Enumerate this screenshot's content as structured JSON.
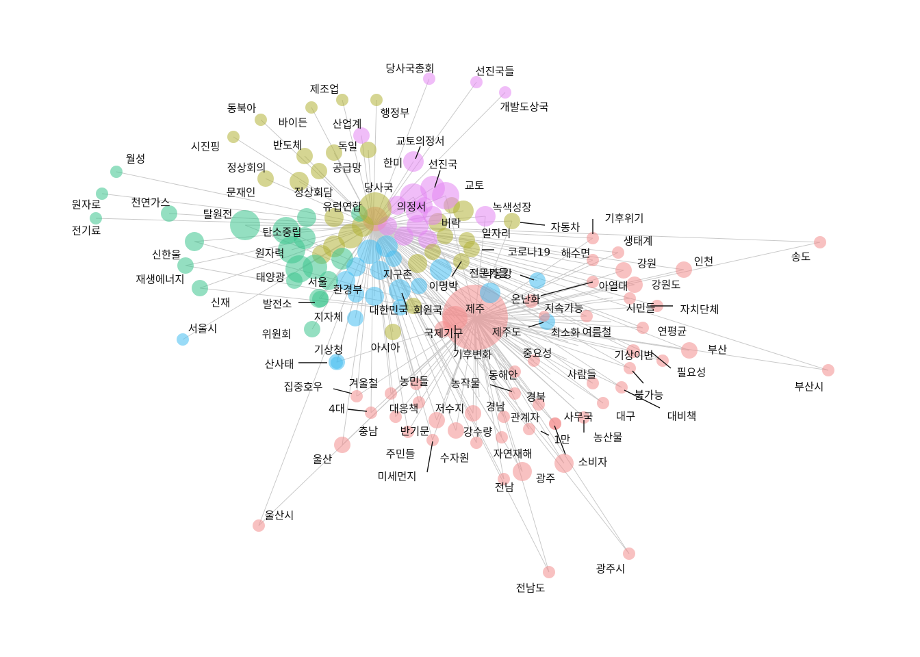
{
  "palette": {
    "salmon": "#f28e8e",
    "violet": "#e486f2",
    "olive": "#b2b239",
    "teal": "#3cc58e",
    "sky": "#45bdf0"
  },
  "graph": {
    "type": "keyword co-occurrence network",
    "clusters": [
      "salmon",
      "violet",
      "olive",
      "teal",
      "sky"
    ],
    "labels": {
      "n_jeju": "제주",
      "n_gihubyeonhwa": "기후변화",
      "n_gukjegigu": "국제기구",
      "n_onnanhwa": "온난화",
      "n_jejudo": "제주도",
      "n_choesohwa": "최소화",
      "n_jisokganeung": "지속가능",
      "n_simindeul": "시민들",
      "n_jachidanche": "자치단체",
      "n_yeonpyeonggyun": "연평균",
      "n_yeoreumcheol": "여름철",
      "n_busan": "부산",
      "n_busansi": "부산시",
      "n_pilyoseong": "필요성",
      "n_gisangibyeon": "기상이변",
      "n_bulganeung": "불가능",
      "n_daebichaek": "대비책",
      "n_daegu": "대구",
      "n_nongsanmul": "농산물",
      "n_samuguk": "사무국",
      "n_saramdeul": "사람들",
      "n_jungyoseong": "중요성",
      "n_donghaean": "동해안",
      "n_gyeongbuk": "경북",
      "n_gyeongnam": "경남",
      "n_nongjakmul": "농작물",
      "n_gwangyeja": "관계자",
      "n_ilman": "1만",
      "n_sobija": "소비자",
      "n_gwangju": "광주",
      "n_gwangjusi": "광주시",
      "n_jeonnam": "전남",
      "n_jeonnamdo": "전남도",
      "n_jayeonjaehae": "자연재해",
      "n_gangsuryang": "강수량",
      "n_suja": "수자원",
      "n_misemeonji": "미세먼지",
      "n_jeosuji": "저수지",
      "n_daeeungchaek": "대응책",
      "n_nongmindeul": "농민들",
      "n_gyeoulcheol": "겨울철",
      "n_jipjunghou": "집중호우",
      "n_4dae": "4대",
      "n_chungnam": "충남",
      "n_bangimun": "반기문",
      "n_jumindeul": "주민들",
      "n_ulsan": "울산",
      "n_ulsansi": "울산시",
      "n_haesumyeon": "해수면",
      "n_gihuwigi": "기후위기",
      "n_saengtaegye": "생태계",
      "n_gangwon": "강원",
      "n_gangwondo": "강원도",
      "n_incheon": "인천",
      "n_songdo": "송도",
      "n_yeoldae": "아열대",
      "n_dangsaguk_chonghoe": "당사국총회",
      "n_seonjinguk_deul": "선진국들",
      "n_gaebaldosangguk": "개발도상국",
      "n_kyoto_protocol": "교토의정서",
      "n_seonjinguk": "선진국",
      "n_kyoto": "교토",
      "n_uijeongseo": "의정서",
      "n_dangsaguk": "당사국",
      "n_hanmi": "한미",
      "n_dogil": "독일",
      "n_noksaek": "녹색성장",
      "n_beorak": "버락",
      "n_jejoeop": "제조업",
      "n_haengjeongbu": "행정부",
      "n_sanopgye": "산업계",
      "n_baideun": "바이든",
      "n_dongbuka": "동북아",
      "n_sijinping": "시진핑",
      "n_bandoche": "반도체",
      "n_gonggeupmang": "공급망",
      "n_jeongsanghoeui": "정상회의",
      "n_jeongsanghoedam": "정상회담",
      "n_munjaein": "문재인",
      "n_eu": "유럽연합",
      "n_jadongcha": "자동차",
      "n_iljari": "일자리",
      "n_corona": "코로나19",
      "n_jeonmungadeul": "전문가들",
      "n_imyeongbak": "이명박",
      "n_jigucheon": "지구촌",
      "n_hwangyeongbu": "환경부",
      "n_seoul": "서울",
      "n_daehanminguk": "대한민국",
      "n_hoewonguk": "회원국",
      "n_nakdonggang": "낙동강",
      "n_jijache": "지자체",
      "n_asia": "아시아",
      "n_gisangcheong": "기상청",
      "n_sansatae": "산사태",
      "n_seoulsi": "서울시",
      "n_wiwonhoe": "위원회",
      "n_baljeonso": "발전소",
      "n_sinjae": "신재",
      "n_jaesaeng": "재생에너지",
      "n_taeyanggwang": "태양광",
      "n_wonjaryeok": "원자력",
      "n_sinhanul": "신한울",
      "n_tansojungnip": "탄소중립",
      "n_talwonjeon": "탈원전",
      "n_cheonyeongas": "천연가스",
      "n_wolseong": "월성",
      "n_wonjaro": "원자로",
      "n_jeongiryo": "전기료"
    }
  }
}
